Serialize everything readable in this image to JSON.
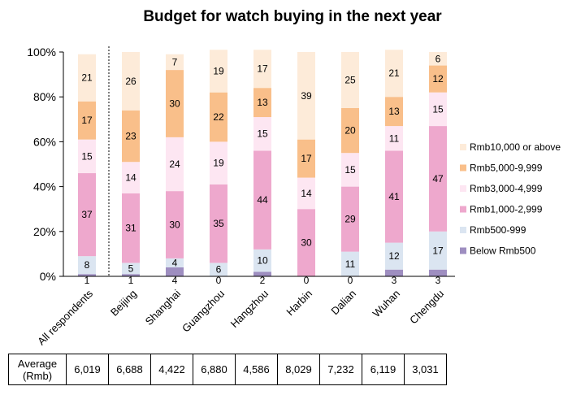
{
  "chart_data": {
    "type": "bar",
    "stacked": true,
    "title": "Budget for watch buying in the next year",
    "categories": [
      "All respondents",
      "Beijing",
      "Shanghai",
      "Guangzhou",
      "Hangzhou",
      "Harbin",
      "Dalian",
      "Wuhan",
      "Chengdu"
    ],
    "yticks": [
      "0%",
      "20%",
      "40%",
      "60%",
      "80%",
      "100%"
    ],
    "ylim": [
      0,
      100
    ],
    "legend_position": "right",
    "series": [
      {
        "name": "Below Rmb500",
        "color": "#9e8ec0",
        "values": [
          1,
          1,
          4,
          0,
          2,
          0,
          0,
          3,
          3
        ]
      },
      {
        "name": "Rmb500-999",
        "color": "#dbe5f1",
        "values": [
          8,
          5,
          4,
          6,
          10,
          0,
          11,
          12,
          17
        ]
      },
      {
        "name": "Rmb1,000-2,999",
        "color": "#eea8cd",
        "values": [
          37,
          31,
          30,
          35,
          44,
          30,
          29,
          41,
          47
        ]
      },
      {
        "name": "Rmb3,000-4,999",
        "color": "#fde6f2",
        "values": [
          15,
          14,
          24,
          19,
          15,
          14,
          15,
          11,
          15
        ]
      },
      {
        "name": "Rmb5,000-9,999",
        "color": "#f9bf8a",
        "values": [
          17,
          23,
          30,
          22,
          13,
          17,
          20,
          13,
          12
        ]
      },
      {
        "name": "Rmb10,000 or above",
        "color": "#fdebd9",
        "values": [
          21,
          26,
          7,
          19,
          17,
          39,
          25,
          21,
          6
        ]
      }
    ],
    "divider_after_category": "All respondents"
  },
  "table": {
    "header": "Average (Rmb)",
    "values": [
      "6,019",
      "6,688",
      "4,422",
      "6,880",
      "4,586",
      "8,029",
      "7,232",
      "6,119",
      "3,031"
    ]
  }
}
